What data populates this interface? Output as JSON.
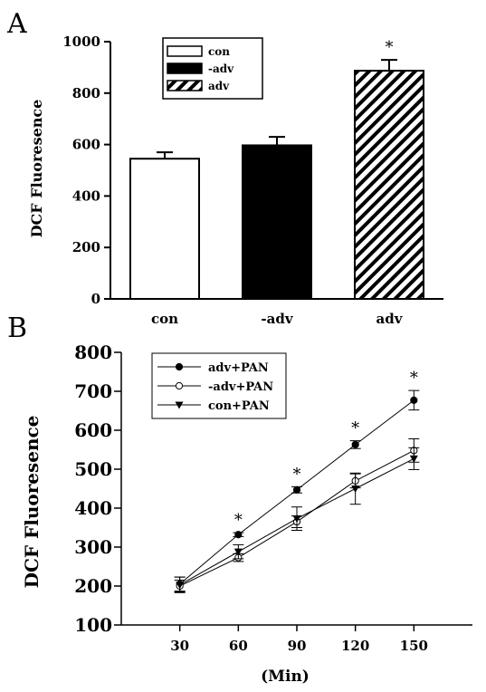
{
  "panel_a_label": "A",
  "panel_b_label": "B",
  "chart_data": [
    {
      "type": "bar",
      "title": "",
      "xlabel": "",
      "ylabel": "DCF Fluoresence",
      "ylim": [
        0,
        1000
      ],
      "yticks": [
        "0",
        "200",
        "400",
        "600",
        "800",
        "1000"
      ],
      "categories": [
        "con",
        "-adv",
        "adv"
      ],
      "values": [
        545,
        597,
        887
      ],
      "errors": [
        25,
        33,
        42
      ],
      "significance": [
        "",
        "",
        "*"
      ],
      "legend": [
        "con",
        "-adv",
        "adv"
      ],
      "legend_position": "top-left",
      "fills": [
        "#ffffff",
        "#000000",
        "hatched"
      ]
    },
    {
      "type": "line",
      "title": "",
      "xlabel": "(Min)",
      "ylabel": "DCF Fluoresence",
      "ylim": [
        100,
        800
      ],
      "xlim": [
        0,
        180
      ],
      "x": [
        30,
        60,
        90,
        120,
        150
      ],
      "xticks": [
        "30",
        "60",
        "90",
        "120",
        "150"
      ],
      "yticks": [
        "100",
        "200",
        "300",
        "400",
        "500",
        "600",
        "700",
        "800"
      ],
      "series": [
        {
          "name": "adv+PAN",
          "marker": "filled-circle",
          "values": [
            205,
            332,
            447,
            563,
            677
          ],
          "errors": [
            18,
            5,
            8,
            10,
            25
          ]
        },
        {
          "name": "-adv+PAN",
          "marker": "open-circle",
          "values": [
            200,
            273,
            365,
            470,
            548
          ],
          "errors": [
            15,
            10,
            15,
            18,
            30
          ]
        },
        {
          "name": "con+PAN",
          "marker": "filled-triangle-down",
          "values": [
            203,
            288,
            373,
            450,
            527
          ],
          "errors": [
            20,
            18,
            30,
            40,
            28
          ]
        }
      ],
      "significance_x": [
        60,
        90,
        120,
        150
      ],
      "significance_mark": "*",
      "legend_position": "top-left"
    }
  ]
}
